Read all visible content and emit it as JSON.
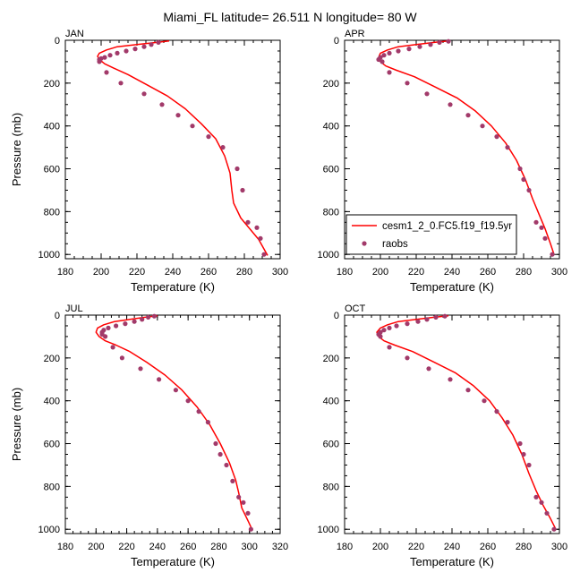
{
  "figure": {
    "title": "Miami_FL  latitude= 26.511 N longitude= 80 W"
  },
  "colors": {
    "model": "#ff0000",
    "obs": "#a23a6a",
    "axis": "#000000"
  },
  "chart_data": [
    {
      "type": "line",
      "panel_label": "JAN",
      "xlabel": "Temperature (K)",
      "ylabel": "Pressure (mb)",
      "xlim": [
        180,
        300
      ],
      "ylim": [
        1020,
        0
      ],
      "xticks": [
        180,
        200,
        220,
        240,
        260,
        280,
        300
      ],
      "yticks": [
        0,
        200,
        400,
        600,
        800,
        1000
      ],
      "grid": false,
      "legend": null,
      "series": [
        {
          "name": "cesm1_2_0.FC5.f19_f19.5yr",
          "kind": "line",
          "x": [
            238,
            231,
            220,
            209,
            203,
            199,
            198,
            199,
            202,
            207,
            215,
            226,
            237,
            247,
            256,
            264,
            269,
            272,
            273,
            274,
            278,
            283,
            288,
            291,
            293
          ],
          "y": [
            3,
            10,
            20,
            30,
            45,
            60,
            75,
            90,
            110,
            130,
            160,
            210,
            260,
            320,
            390,
            460,
            540,
            620,
            700,
            760,
            830,
            880,
            930,
            975,
            1005
          ]
        },
        {
          "name": "raobs",
          "kind": "points",
          "x": [
            232,
            228,
            224,
            219,
            214,
            209,
            205,
            202,
            200,
            199,
            199,
            203,
            211,
            224,
            234,
            243,
            251,
            260,
            268,
            276,
            279,
            282,
            287,
            289,
            291
          ],
          "y": [
            10,
            20,
            30,
            40,
            50,
            60,
            70,
            80,
            85,
            90,
            100,
            150,
            200,
            250,
            300,
            350,
            400,
            450,
            500,
            600,
            700,
            850,
            875,
            925,
            1000
          ]
        }
      ]
    },
    {
      "type": "line",
      "panel_label": "APR",
      "xlabel": "Temperature (K)",
      "ylabel": "",
      "xlim": [
        180,
        300
      ],
      "ylim": [
        1020,
        0
      ],
      "xticks": [
        180,
        200,
        220,
        240,
        260,
        280,
        300
      ],
      "yticks": [
        0,
        200,
        400,
        600,
        800,
        1000
      ],
      "grid": false,
      "legend": "lower-right",
      "series": [
        {
          "name": "cesm1_2_0.FC5.f19_f19.5yr",
          "kind": "line",
          "x": [
            238,
            230,
            220,
            210,
            204,
            200,
            199,
            200,
            203,
            209,
            219,
            231,
            243,
            253,
            262,
            270,
            276,
            281,
            285,
            289,
            292,
            295,
            297
          ],
          "y": [
            3,
            10,
            20,
            30,
            45,
            60,
            80,
            100,
            120,
            140,
            170,
            220,
            270,
            330,
            400,
            480,
            560,
            650,
            740,
            820,
            880,
            950,
            1000
          ]
        },
        {
          "name": "raobs",
          "kind": "points",
          "x": [
            238,
            233,
            228,
            222,
            216,
            210,
            205,
            202,
            200,
            199,
            201,
            205,
            215,
            226,
            239,
            249,
            257,
            265,
            271,
            278,
            280,
            283,
            287,
            290,
            292,
            296
          ],
          "y": [
            5,
            10,
            20,
            30,
            40,
            50,
            60,
            70,
            80,
            90,
            100,
            150,
            200,
            250,
            300,
            350,
            400,
            450,
            500,
            600,
            650,
            700,
            850,
            875,
            925,
            1000
          ]
        }
      ]
    },
    {
      "type": "line",
      "panel_label": "JUL",
      "xlabel": "Temperature (K)",
      "ylabel": "Pressure (mb)",
      "xlim": [
        180,
        320
      ],
      "ylim": [
        1020,
        0
      ],
      "xticks": [
        180,
        200,
        220,
        240,
        260,
        280,
        300,
        320
      ],
      "yticks": [
        0,
        200,
        400,
        600,
        800,
        1000
      ],
      "grid": false,
      "legend": null,
      "series": [
        {
          "name": "cesm1_2_0.FC5.f19_f19.5yr",
          "kind": "line",
          "x": [
            240,
            232,
            222,
            212,
            205,
            201,
            200,
            202,
            206,
            213,
            222,
            233,
            245,
            256,
            266,
            274,
            281,
            287,
            291,
            293,
            295,
            299,
            302
          ],
          "y": [
            3,
            10,
            20,
            30,
            45,
            60,
            80,
            100,
            120,
            140,
            170,
            220,
            280,
            350,
            430,
            510,
            600,
            690,
            770,
            830,
            900,
            960,
            1005
          ]
        },
        {
          "name": "raobs",
          "kind": "points",
          "x": [
            238,
            234,
            230,
            225,
            219,
            213,
            208,
            205,
            204,
            204,
            206,
            211,
            217,
            229,
            241,
            252,
            260,
            267,
            273,
            278,
            281,
            285,
            289,
            293,
            296,
            299,
            301
          ],
          "y": [
            5,
            10,
            20,
            30,
            40,
            50,
            60,
            70,
            80,
            90,
            100,
            150,
            200,
            250,
            300,
            350,
            400,
            450,
            500,
            600,
            650,
            700,
            775,
            850,
            875,
            925,
            1000
          ]
        }
      ]
    },
    {
      "type": "line",
      "panel_label": "OCT",
      "xlabel": "Temperature (K)",
      "ylabel": "",
      "xlim": [
        180,
        300
      ],
      "ylim": [
        1020,
        0
      ],
      "xticks": [
        180,
        200,
        220,
        240,
        260,
        280,
        300
      ],
      "yticks": [
        0,
        200,
        400,
        600,
        800,
        1000
      ],
      "grid": false,
      "legend": null,
      "series": [
        {
          "name": "cesm1_2_0.FC5.f19_f19.5yr",
          "kind": "line",
          "x": [
            238,
            230,
            220,
            210,
            204,
            200,
            198,
            199,
            202,
            208,
            218,
            230,
            242,
            252,
            261,
            268,
            274,
            279,
            283,
            287,
            291,
            295,
            298
          ],
          "y": [
            3,
            10,
            20,
            30,
            45,
            60,
            80,
            100,
            120,
            140,
            170,
            220,
            270,
            330,
            400,
            480,
            560,
            650,
            740,
            820,
            890,
            950,
            1000
          ]
        },
        {
          "name": "raobs",
          "kind": "points",
          "x": [
            236,
            231,
            226,
            221,
            215,
            209,
            205,
            202,
            200,
            199,
            200,
            205,
            215,
            227,
            239,
            249,
            258,
            265,
            271,
            278,
            280,
            283,
            287,
            290,
            293,
            297
          ],
          "y": [
            5,
            10,
            20,
            30,
            40,
            50,
            60,
            70,
            80,
            90,
            100,
            150,
            200,
            250,
            300,
            350,
            400,
            450,
            500,
            600,
            650,
            700,
            850,
            875,
            925,
            1000
          ]
        }
      ]
    }
  ]
}
